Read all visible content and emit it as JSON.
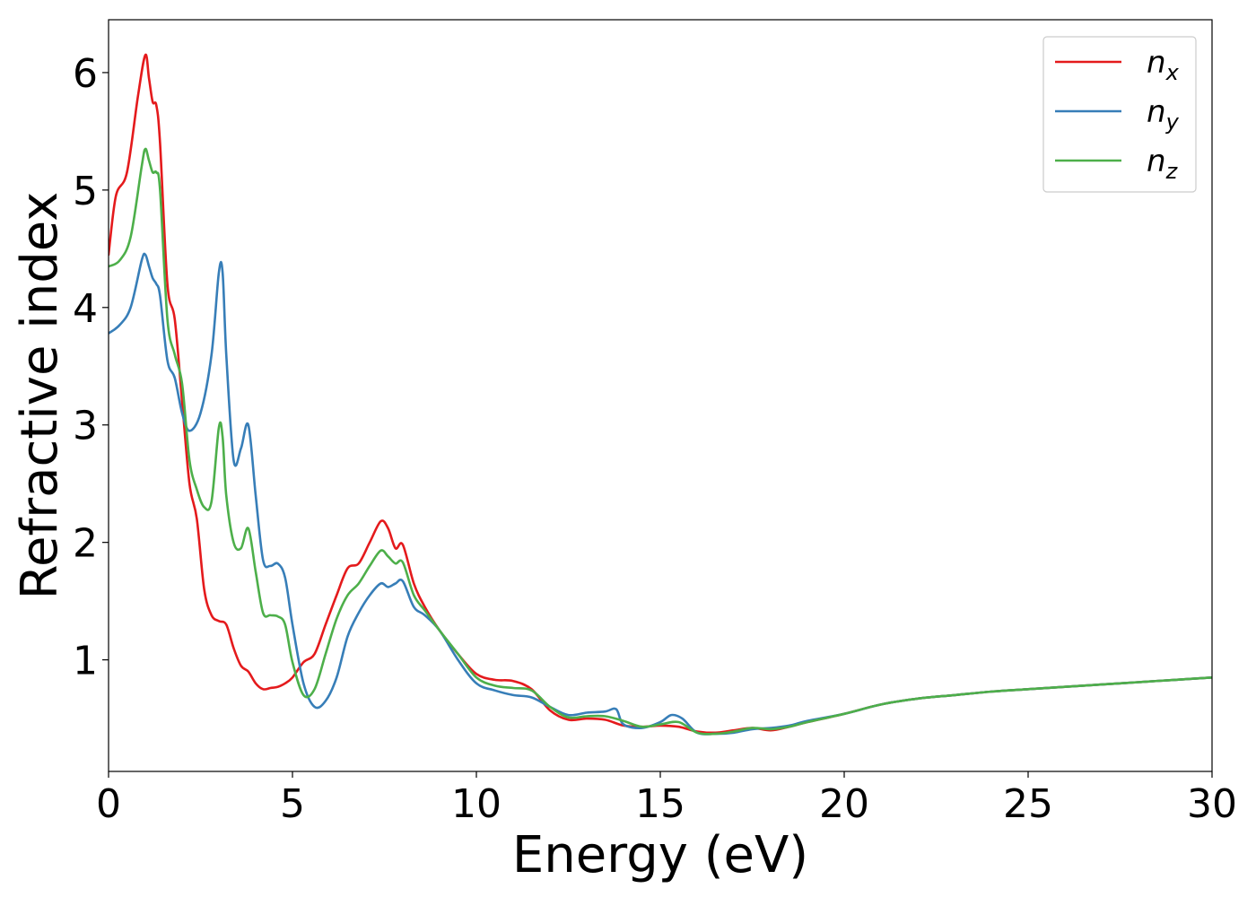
{
  "chart_data": {
    "type": "line",
    "title": "",
    "xlabel": "Energy (eV)",
    "ylabel": "Refractive index",
    "xlim": [
      0,
      30
    ],
    "ylim": [
      0.05,
      6.45
    ],
    "xticks": [
      0,
      5,
      10,
      15,
      20,
      25,
      30
    ],
    "yticks": [
      1,
      2,
      3,
      4,
      5,
      6
    ],
    "grid": false,
    "legend_position": "top-right",
    "series": [
      {
        "name": "n",
        "subscript": "x",
        "color": "#e41a1c",
        "x": [
          0,
          0.2,
          0.5,
          0.8,
          1.0,
          1.1,
          1.2,
          1.3,
          1.4,
          1.6,
          1.8,
          2.0,
          2.2,
          2.4,
          2.6,
          2.8,
          3.0,
          3.2,
          3.4,
          3.6,
          3.8,
          4.0,
          4.2,
          4.4,
          4.6,
          4.8,
          5.0,
          5.3,
          5.6,
          5.9,
          6.2,
          6.5,
          6.8,
          7.1,
          7.4,
          7.6,
          7.8,
          8.0,
          8.3,
          8.6,
          9.0,
          9.5,
          10.0,
          10.5,
          11.0,
          11.5,
          12.0,
          12.5,
          13.0,
          13.5,
          14.0,
          14.5,
          15.0,
          15.5,
          16.0,
          16.5,
          17.0,
          17.5,
          18.0,
          18.5,
          19.0,
          20.0,
          21.0,
          22.0,
          23.0,
          24.0,
          25.0,
          26.0,
          27.0,
          28.0,
          29.0,
          30.0
        ],
        "values": [
          4.45,
          4.95,
          5.15,
          5.8,
          6.15,
          5.95,
          5.75,
          5.72,
          5.4,
          4.2,
          3.9,
          3.2,
          2.5,
          2.2,
          1.6,
          1.38,
          1.33,
          1.3,
          1.1,
          0.95,
          0.9,
          0.8,
          0.75,
          0.76,
          0.77,
          0.8,
          0.85,
          0.98,
          1.05,
          1.3,
          1.55,
          1.78,
          1.82,
          2.0,
          2.18,
          2.12,
          1.95,
          1.98,
          1.65,
          1.45,
          1.25,
          1.05,
          0.88,
          0.83,
          0.82,
          0.75,
          0.57,
          0.49,
          0.5,
          0.49,
          0.44,
          0.43,
          0.44,
          0.43,
          0.39,
          0.38,
          0.4,
          0.42,
          0.4,
          0.43,
          0.47,
          0.54,
          0.62,
          0.67,
          0.7,
          0.73,
          0.75,
          0.77,
          0.79,
          0.81,
          0.83,
          0.85
        ]
      },
      {
        "name": "n",
        "subscript": "y",
        "color": "#377eb8",
        "x": [
          0,
          0.3,
          0.6,
          0.9,
          1.0,
          1.1,
          1.2,
          1.3,
          1.4,
          1.6,
          1.8,
          2.0,
          2.2,
          2.5,
          2.8,
          3.0,
          3.1,
          3.2,
          3.4,
          3.6,
          3.8,
          4.0,
          4.2,
          4.4,
          4.6,
          4.8,
          5.0,
          5.3,
          5.6,
          5.9,
          6.2,
          6.5,
          6.8,
          7.1,
          7.4,
          7.6,
          7.8,
          8.0,
          8.3,
          8.6,
          9.0,
          9.5,
          10.0,
          10.5,
          11.0,
          11.5,
          12.0,
          12.5,
          13.0,
          13.5,
          13.8,
          14.0,
          14.5,
          15.0,
          15.3,
          15.6,
          16.0,
          16.5,
          17.0,
          17.5,
          18.0,
          18.5,
          19.0,
          20.0,
          21.0,
          22.0,
          23.0,
          24.0,
          25.0,
          26.0,
          27.0,
          28.0,
          29.0,
          30.0
        ],
        "values": [
          3.78,
          3.85,
          4.0,
          4.4,
          4.45,
          4.35,
          4.25,
          4.2,
          4.1,
          3.55,
          3.4,
          3.1,
          2.95,
          3.1,
          3.6,
          4.3,
          4.3,
          3.6,
          2.7,
          2.8,
          3.0,
          2.4,
          1.85,
          1.8,
          1.82,
          1.7,
          1.3,
          0.8,
          0.6,
          0.65,
          0.85,
          1.2,
          1.4,
          1.55,
          1.65,
          1.62,
          1.65,
          1.67,
          1.45,
          1.38,
          1.25,
          1.0,
          0.8,
          0.74,
          0.7,
          0.68,
          0.6,
          0.53,
          0.55,
          0.56,
          0.58,
          0.45,
          0.42,
          0.47,
          0.53,
          0.5,
          0.38,
          0.37,
          0.38,
          0.41,
          0.42,
          0.44,
          0.48,
          0.54,
          0.62,
          0.67,
          0.7,
          0.73,
          0.75,
          0.77,
          0.79,
          0.81,
          0.83,
          0.85
        ]
      },
      {
        "name": "n",
        "subscript": "z",
        "color": "#4daf4a",
        "x": [
          0,
          0.3,
          0.6,
          0.9,
          1.0,
          1.1,
          1.2,
          1.3,
          1.4,
          1.6,
          1.8,
          2.0,
          2.2,
          2.4,
          2.6,
          2.8,
          3.0,
          3.1,
          3.2,
          3.4,
          3.6,
          3.8,
          4.0,
          4.2,
          4.4,
          4.6,
          4.8,
          5.0,
          5.3,
          5.6,
          5.9,
          6.2,
          6.5,
          6.8,
          7.1,
          7.4,
          7.6,
          7.8,
          8.0,
          8.3,
          8.6,
          9.0,
          9.5,
          10.0,
          10.5,
          11.0,
          11.5,
          12.0,
          12.5,
          13.0,
          13.5,
          14.0,
          14.5,
          15.0,
          15.5,
          16.0,
          16.5,
          17.0,
          17.5,
          18.0,
          18.5,
          19.0,
          20.0,
          21.0,
          22.0,
          23.0,
          24.0,
          25.0,
          26.0,
          27.0,
          28.0,
          29.0,
          30.0
        ],
        "values": [
          4.35,
          4.4,
          4.6,
          5.2,
          5.35,
          5.25,
          5.15,
          5.15,
          5.0,
          3.9,
          3.6,
          3.35,
          2.7,
          2.45,
          2.3,
          2.35,
          2.98,
          2.9,
          2.4,
          2.0,
          1.95,
          2.12,
          1.75,
          1.4,
          1.38,
          1.37,
          1.3,
          0.98,
          0.7,
          0.75,
          1.05,
          1.35,
          1.55,
          1.65,
          1.8,
          1.93,
          1.88,
          1.82,
          1.83,
          1.55,
          1.42,
          1.25,
          1.05,
          0.85,
          0.78,
          0.76,
          0.74,
          0.6,
          0.51,
          0.52,
          0.52,
          0.48,
          0.43,
          0.45,
          0.47,
          0.38,
          0.37,
          0.39,
          0.42,
          0.41,
          0.43,
          0.47,
          0.54,
          0.62,
          0.67,
          0.7,
          0.73,
          0.75,
          0.77,
          0.79,
          0.81,
          0.83,
          0.85
        ]
      }
    ]
  }
}
